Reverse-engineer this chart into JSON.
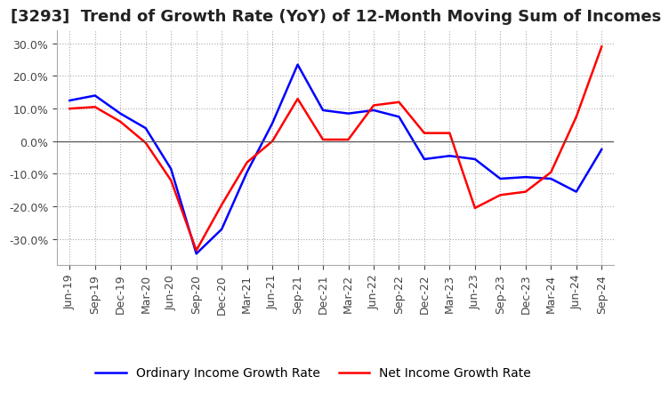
{
  "title": "[3293]  Trend of Growth Rate (YoY) of 12-Month Moving Sum of Incomes",
  "ylim": [
    -0.38,
    0.34
  ],
  "yticks": [
    -0.3,
    -0.2,
    -0.1,
    0.0,
    0.1,
    0.2,
    0.3
  ],
  "x_labels": [
    "Jun-19",
    "Sep-19",
    "Dec-19",
    "Mar-20",
    "Jun-20",
    "Sep-20",
    "Dec-20",
    "Mar-21",
    "Jun-21",
    "Sep-21",
    "Dec-21",
    "Mar-22",
    "Jun-22",
    "Sep-22",
    "Dec-22",
    "Mar-23",
    "Jun-23",
    "Sep-23",
    "Dec-23",
    "Mar-24",
    "Jun-24",
    "Sep-24"
  ],
  "ordinary_income": [
    0.125,
    0.14,
    0.085,
    0.04,
    -0.085,
    -0.345,
    -0.27,
    -0.095,
    0.055,
    0.235,
    0.095,
    0.085,
    0.095,
    0.075,
    -0.055,
    -0.045,
    -0.055,
    -0.115,
    -0.11,
    -0.115,
    -0.155,
    -0.025
  ],
  "net_income": [
    0.1,
    0.105,
    0.06,
    -0.005,
    -0.12,
    -0.335,
    -0.195,
    -0.065,
    0.0,
    0.13,
    0.005,
    0.005,
    0.11,
    0.12,
    0.025,
    0.025,
    -0.205,
    -0.165,
    -0.155,
    -0.095,
    0.075,
    0.29
  ],
  "ordinary_color": "#0000FF",
  "net_color": "#FF0000",
  "background_color": "#FFFFFF",
  "grid_color": "#AAAAAA",
  "zero_line_color": "#555555",
  "title_fontsize": 13,
  "tick_fontsize": 9,
  "legend_fontsize": 10
}
